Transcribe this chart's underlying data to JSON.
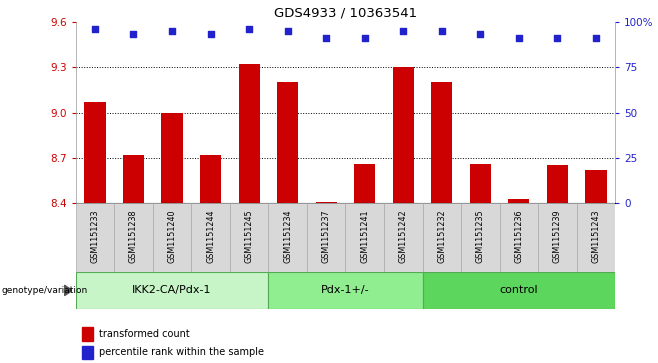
{
  "title": "GDS4933 / 10363541",
  "samples": [
    "GSM1151233",
    "GSM1151238",
    "GSM1151240",
    "GSM1151244",
    "GSM1151245",
    "GSM1151234",
    "GSM1151237",
    "GSM1151241",
    "GSM1151242",
    "GSM1151232",
    "GSM1151235",
    "GSM1151236",
    "GSM1151239",
    "GSM1151243"
  ],
  "transformed_counts": [
    9.07,
    8.72,
    9.0,
    8.72,
    9.32,
    9.2,
    8.41,
    8.66,
    9.3,
    9.2,
    8.66,
    8.43,
    8.65,
    8.62
  ],
  "percentile_ranks": [
    96,
    93,
    95,
    93,
    96,
    95,
    91,
    91,
    95,
    95,
    93,
    91,
    91,
    91
  ],
  "groups": [
    {
      "label": "IKK2-CA/Pdx-1",
      "start": 0,
      "end": 5,
      "color": "#c8f5c8"
    },
    {
      "label": "Pdx-1+/-",
      "start": 5,
      "end": 9,
      "color": "#90ee90"
    },
    {
      "label": "control",
      "start": 9,
      "end": 14,
      "color": "#5cd65c"
    }
  ],
  "ylim_left": [
    8.4,
    9.6
  ],
  "ylim_right": [
    0,
    100
  ],
  "yticks_left": [
    8.4,
    8.7,
    9.0,
    9.3,
    9.6
  ],
  "yticks_right": [
    0,
    25,
    50,
    75,
    100
  ],
  "ytick_labels_right": [
    "0",
    "25",
    "50",
    "75",
    "100%"
  ],
  "bar_color": "#cc0000",
  "dot_color": "#2222cc",
  "grid_color": "#000000",
  "bg_color": "#ffffff",
  "label_color_left": "#cc0000",
  "label_color_right": "#2222cc",
  "genotype_label": "genotype/variation",
  "legend_bar": "transformed count",
  "legend_dot": "percentile rank within the sample",
  "sample_box_color": "#d8d8d8",
  "sample_box_edge": "#aaaaaa"
}
